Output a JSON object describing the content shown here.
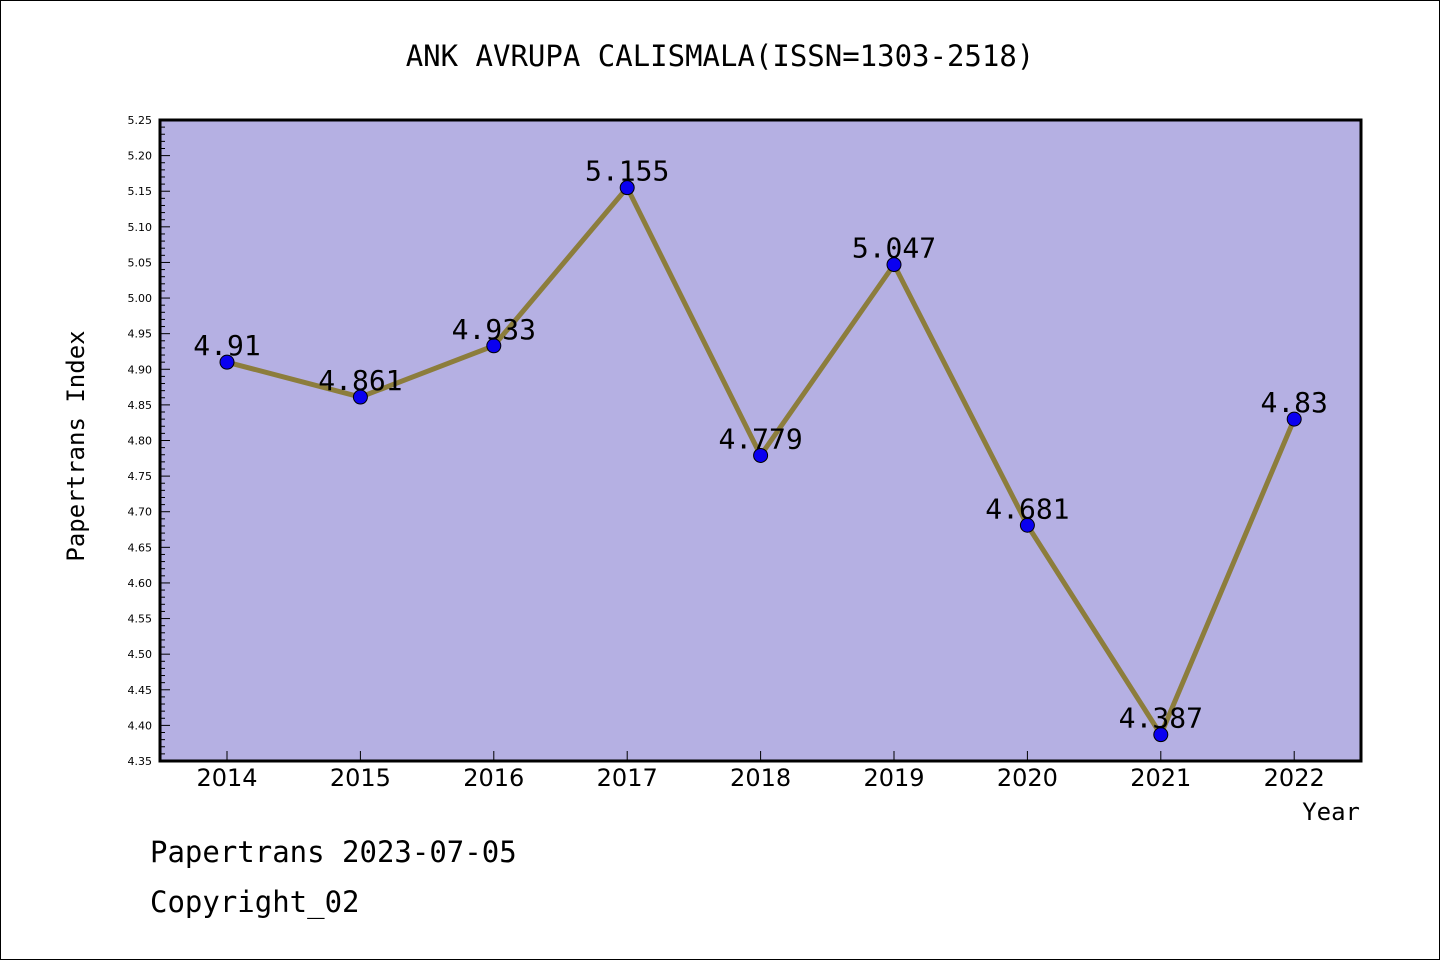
{
  "chart_data": {
    "type": "line",
    "title": "ANK AVRUPA CALISMALA(ISSN=1303-2518)",
    "xlabel": "Year",
    "ylabel": "Papertrans Index",
    "categories": [
      "2014",
      "2015",
      "2016",
      "2017",
      "2018",
      "2019",
      "2020",
      "2021",
      "2022"
    ],
    "values": [
      4.91,
      4.861,
      4.933,
      5.155,
      4.779,
      5.047,
      4.681,
      4.387,
      4.83
    ],
    "value_labels": [
      "4.91",
      "4.861",
      "4.933",
      "5.155",
      "4.779",
      "5.047",
      "4.681",
      "4.387",
      "4.83"
    ],
    "ylim": [
      4.35,
      5.25
    ],
    "yticks": [
      "4.35",
      "4.40",
      "4.45",
      "4.50",
      "4.55",
      "4.60",
      "4.65",
      "4.70",
      "4.75",
      "4.80",
      "4.85",
      "4.90",
      "4.95",
      "5.00",
      "5.05",
      "5.10",
      "5.15",
      "5.20",
      "5.25"
    ],
    "grid": false,
    "legend": "none",
    "colors": {
      "plot_background": "#b5b0e3",
      "line": "#8c7d3c",
      "marker": "#0a00f0"
    }
  },
  "footer": {
    "line1": "Papertrans 2023-07-05",
    "line2": "Copyright_02"
  }
}
